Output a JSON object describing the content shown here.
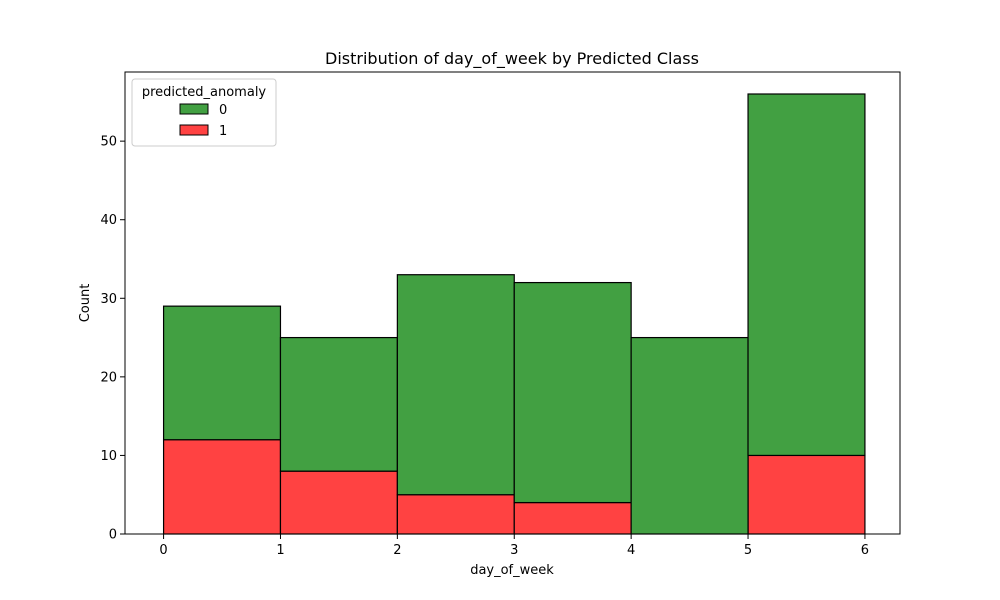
{
  "chart_data": {
    "type": "bar",
    "stacked": true,
    "histogram": true,
    "title": "Distribution of day_of_week by Predicted Class",
    "xlabel": "day_of_week",
    "ylabel": "Count",
    "bin_edges": [
      0,
      1,
      2,
      3,
      4,
      5,
      6
    ],
    "xlim": [
      -0.33,
      6.3
    ],
    "ylim": [
      0,
      58.8
    ],
    "xticks": [
      0,
      1,
      2,
      3,
      4,
      5,
      6
    ],
    "yticks": [
      0,
      10,
      20,
      30,
      40,
      50
    ],
    "legend": {
      "title": "predicted_anomaly",
      "placement": "top-left"
    },
    "series": [
      {
        "name": "1",
        "color": "#ff4242",
        "values": [
          12,
          8,
          5,
          4,
          0,
          10
        ]
      },
      {
        "name": "0",
        "color": "#42a042",
        "values": [
          17,
          17,
          28,
          28,
          25,
          46
        ]
      }
    ],
    "legend_order": [
      "0",
      "1"
    ]
  }
}
